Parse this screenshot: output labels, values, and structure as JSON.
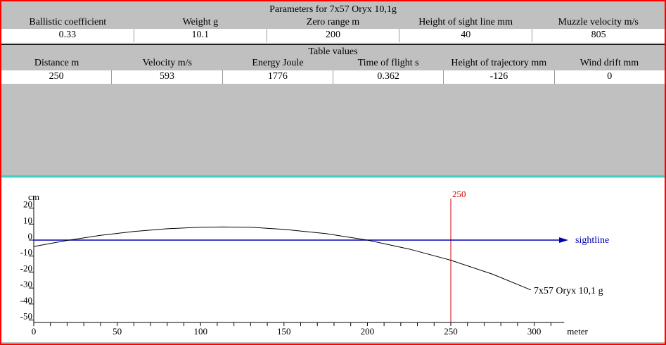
{
  "window": {
    "border_color": "#ff0000",
    "panel_color": "#c0c0c0",
    "accent_teal": "#3ed2c6"
  },
  "parameters": {
    "title": "Parameters for 7x57 Oryx 10,1g",
    "columns": [
      {
        "label": "Ballistic coefficient",
        "value": "0.33"
      },
      {
        "label": "Weight g",
        "value": "10.1"
      },
      {
        "label": "Zero range m",
        "value": "200"
      },
      {
        "label": "Height of sight line mm",
        "value": "40"
      },
      {
        "label": "Muzzle velocity m/s",
        "value": "805"
      }
    ]
  },
  "table_values": {
    "title": "Table values",
    "columns": [
      {
        "label": "Distance m",
        "value": "250"
      },
      {
        "label": "Velocity m/s",
        "value": "593"
      },
      {
        "label": "Energy Joule",
        "value": "1776"
      },
      {
        "label": "Time of flight s",
        "value": "0.362"
      },
      {
        "label": "Height of trajectory mm",
        "value": "-126"
      },
      {
        "label": "Wind drift mm",
        "value": "0"
      }
    ]
  },
  "chart_data": {
    "type": "line",
    "title": "",
    "xlabel": "meter",
    "ylabel": "cm",
    "xlim": [
      0,
      318
    ],
    "ylim": [
      -50,
      20
    ],
    "x_ticks_major": [
      0,
      50,
      100,
      150,
      200,
      250,
      300
    ],
    "x_minor_step": 10,
    "y_ticks": [
      20,
      10,
      0,
      -10,
      -20,
      -30,
      -40,
      -50
    ],
    "grid": false,
    "sightline": {
      "label": "sightline",
      "y": 0,
      "color": "#0000b0"
    },
    "marker_line": {
      "label": "250",
      "x": 250,
      "color": "#cc0000"
    },
    "series": [
      {
        "name": "7x57 Oryx 10,1 g",
        "color": "#000000",
        "points": [
          [
            0,
            -4
          ],
          [
            20,
            -0.2
          ],
          [
            40,
            3.0
          ],
          [
            60,
            5.4
          ],
          [
            80,
            7.1
          ],
          [
            100,
            8.0
          ],
          [
            113,
            8.2
          ],
          [
            130,
            8.0
          ],
          [
            150,
            6.7
          ],
          [
            175,
            4.1
          ],
          [
            200,
            0
          ],
          [
            225,
            -5.6
          ],
          [
            250,
            -12.6
          ],
          [
            275,
            -21.3
          ],
          [
            298,
            -31.2
          ]
        ]
      }
    ],
    "axis_color": "#000000"
  }
}
